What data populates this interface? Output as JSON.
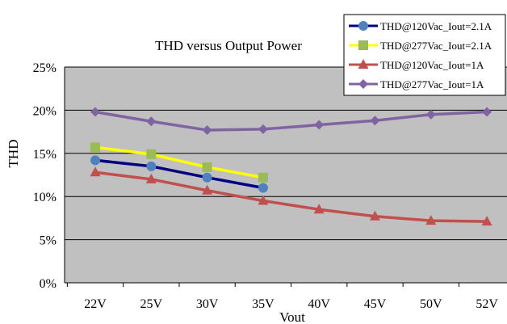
{
  "chart_data": {
    "type": "line",
    "title": "THD versus Output Power",
    "xlabel": "Vout",
    "ylabel": "THD",
    "categories": [
      "22V",
      "25V",
      "30V",
      "35V",
      "40V",
      "45V",
      "50V",
      "52V"
    ],
    "y_ticks": [
      "0%",
      "5%",
      "10%",
      "15%",
      "20%",
      "25%"
    ],
    "ylim": [
      0,
      25
    ],
    "grid": true,
    "legend_position": "top-right",
    "plot_background": "#c0c0c0",
    "series": [
      {
        "name": "THD@120Vac_Iout=2.1A",
        "color": "#000080",
        "marker": "circle",
        "marker_color": "#4f81bd",
        "values": [
          14.2,
          13.5,
          12.2,
          11.0,
          null,
          null,
          null,
          null
        ]
      },
      {
        "name": "THD@277Vac_Iout=2.1A",
        "color": "#ffff00",
        "marker": "square",
        "marker_color": "#9bbb59",
        "values": [
          15.7,
          14.9,
          13.4,
          12.2,
          null,
          null,
          null,
          null
        ]
      },
      {
        "name": "THD@120Vac_Iout=1A",
        "color": "#c0504d",
        "marker": "triangle",
        "marker_color": "#c0504d",
        "values": [
          12.8,
          12.0,
          10.7,
          9.5,
          8.5,
          7.7,
          7.2,
          7.1
        ]
      },
      {
        "name": "THD@277Vac_Iout=1A",
        "color": "#8064a2",
        "marker": "diamond",
        "marker_color": "#8064a2",
        "values": [
          19.8,
          18.7,
          17.7,
          17.8,
          18.3,
          18.8,
          19.5,
          19.8
        ]
      }
    ]
  }
}
